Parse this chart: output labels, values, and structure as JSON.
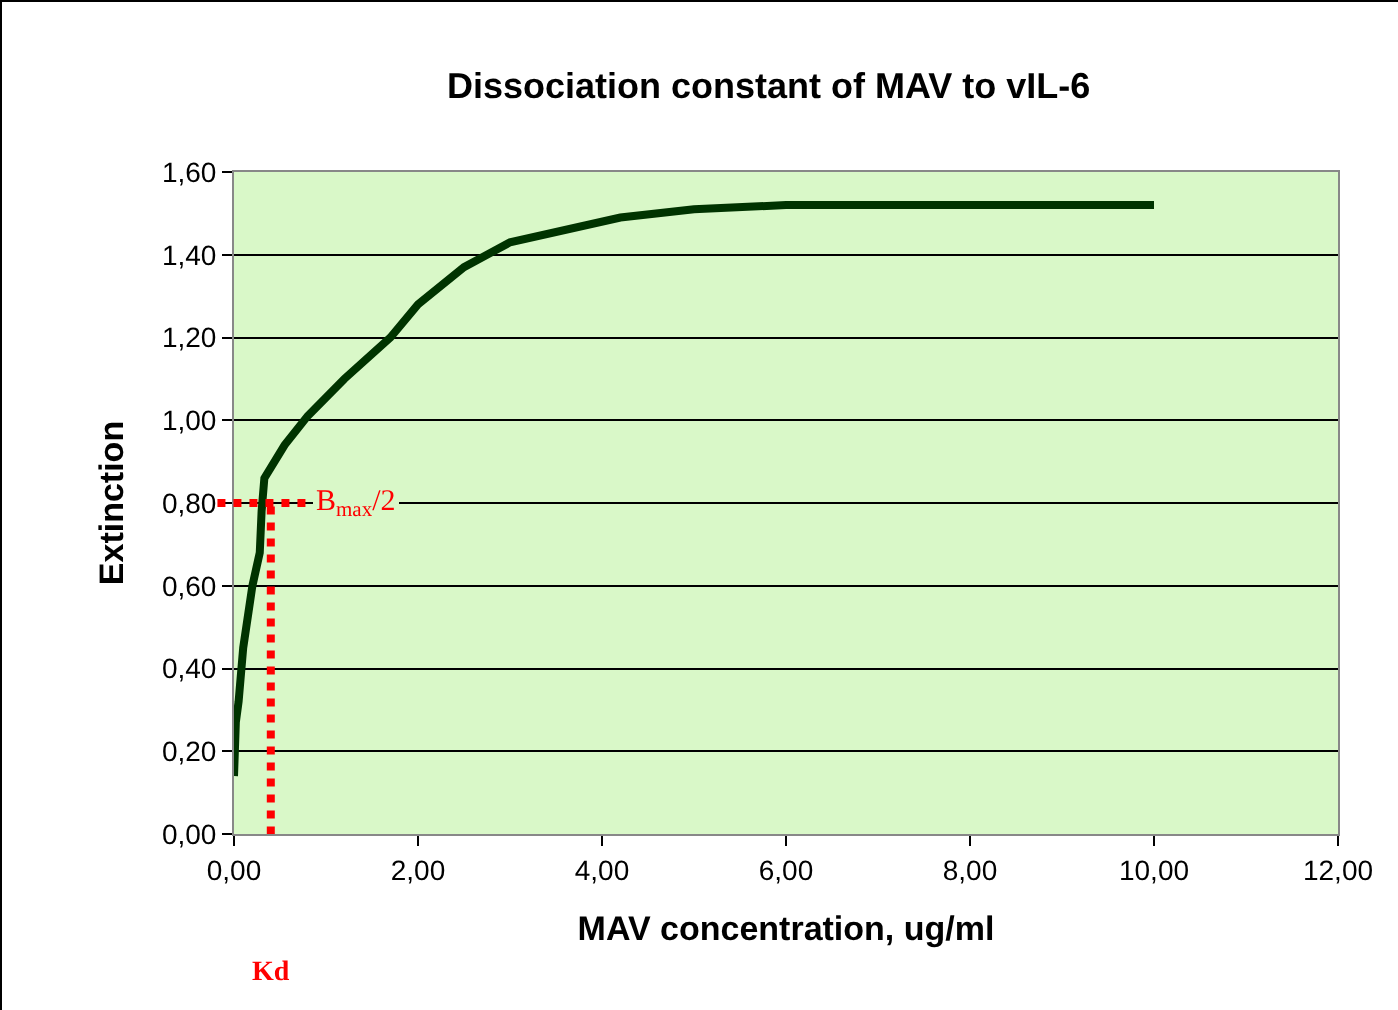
{
  "chart_data": {
    "type": "line",
    "title": "Dissociation constant of MAV to vIL-6",
    "xlabel": "MAV concentration, ug/ml",
    "ylabel": "Extinction",
    "x": [
      0,
      0.02,
      0.05,
      0.1,
      0.2,
      0.28,
      0.3,
      0.33,
      0.55,
      0.8,
      1.2,
      1.7,
      2.0,
      2.5,
      3.0,
      4.2,
      5.0,
      6.0,
      10.0
    ],
    "series": [
      {
        "color": "#003300",
        "values": [
          0.14,
          0.27,
          0.32,
          0.45,
          0.6,
          0.68,
          0.78,
          0.86,
          0.94,
          1.01,
          1.1,
          1.2,
          1.28,
          1.37,
          1.43,
          1.49,
          1.51,
          1.52,
          1.52
        ]
      }
    ],
    "xlim": [
      0,
      12
    ],
    "ylim": [
      0,
      1.6
    ],
    "xticks": [
      {
        "value": 0,
        "label": "0,00"
      },
      {
        "value": 2,
        "label": "2,00"
      },
      {
        "value": 4,
        "label": "4,00"
      },
      {
        "value": 6,
        "label": "6,00"
      },
      {
        "value": 8,
        "label": "8,00"
      },
      {
        "value": 10,
        "label": "10,00"
      },
      {
        "value": 12,
        "label": "12,00"
      }
    ],
    "yticks": [
      {
        "value": 0,
        "label": "0,00"
      },
      {
        "value": 0.2,
        "label": "0,20"
      },
      {
        "value": 0.4,
        "label": "0,40"
      },
      {
        "value": 0.6,
        "label": "0,60"
      },
      {
        "value": 0.8,
        "label": "0,80"
      },
      {
        "value": 1.0,
        "label": "1,00"
      },
      {
        "value": 1.2,
        "label": "1,20"
      },
      {
        "value": 1.4,
        "label": "1,40"
      },
      {
        "value": 1.6,
        "label": "1,60"
      }
    ],
    "ref_lines": [
      {
        "axis": "y",
        "value": 0.8,
        "label": "B$_{max}$/2",
        "color": "#ff0000",
        "line_style": "dotted"
      },
      {
        "axis": "x",
        "value": 0.4,
        "label": "Kd",
        "color": "#ff0000",
        "line_style": "dotted"
      }
    ],
    "grid": "y",
    "marker": "none",
    "line_style": "solid"
  }
}
